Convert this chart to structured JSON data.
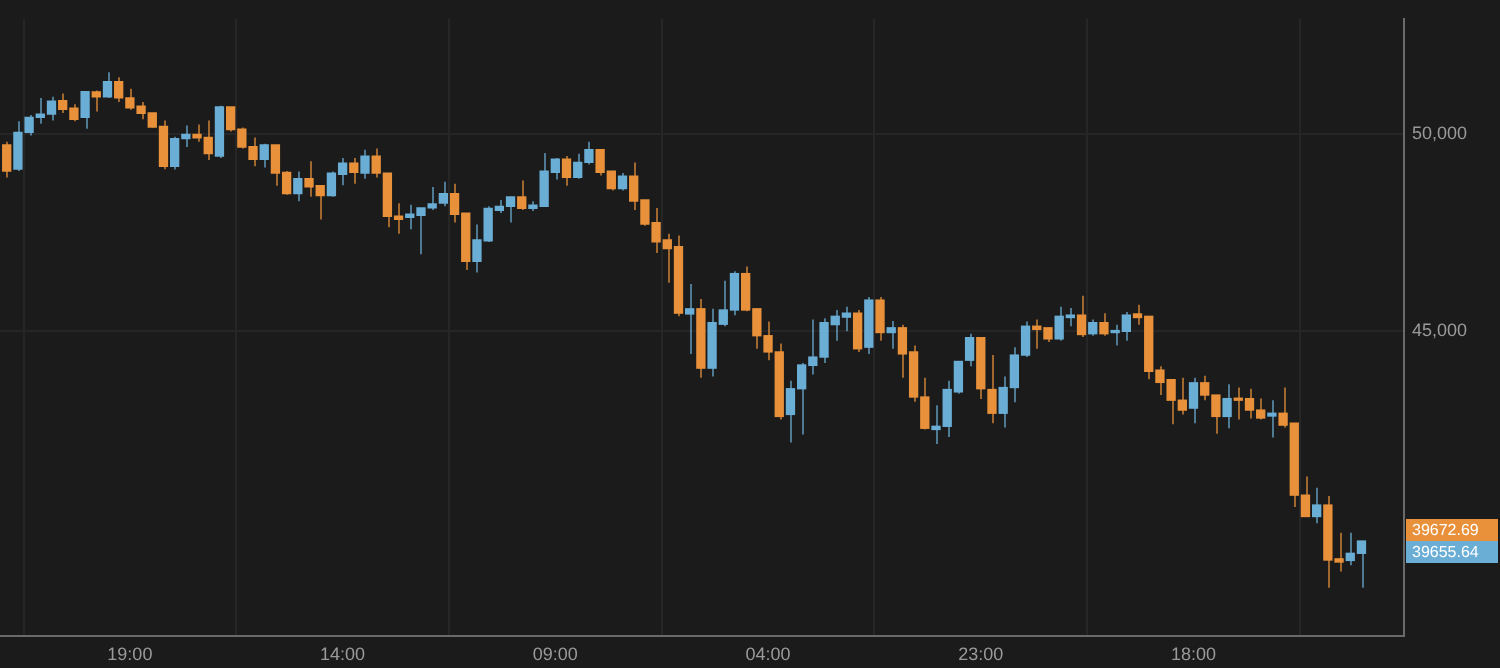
{
  "chart_data": {
    "type": "candlestick",
    "categories": [
      null,
      null,
      null,
      null,
      null,
      null,
      null,
      null,
      null,
      null,
      null,
      "19:00",
      null,
      null,
      null,
      null,
      null,
      null,
      null,
      null,
      null,
      null,
      null,
      null,
      null,
      null,
      null,
      null,
      null,
      null,
      "14:00",
      null,
      null,
      null,
      null,
      null,
      null,
      null,
      null,
      null,
      null,
      null,
      null,
      null,
      null,
      null,
      null,
      null,
      null,
      "09:00",
      null,
      null,
      null,
      null,
      null,
      null,
      null,
      null,
      null,
      null,
      null,
      null,
      null,
      null,
      null,
      null,
      null,
      null,
      "04:00",
      null,
      null,
      null,
      null,
      null,
      null,
      null,
      null,
      null,
      null,
      null,
      null,
      null,
      null,
      null,
      null,
      null,
      null,
      "23:00",
      null,
      null,
      null,
      null,
      null,
      null,
      null,
      null,
      null,
      null,
      null,
      null,
      null,
      null,
      null,
      null,
      null,
      null,
      "18:00",
      null,
      null,
      null,
      null,
      null,
      null,
      null,
      null,
      null,
      null,
      null,
      null,
      null,
      null,
      null
    ],
    "ohlc": [
      [
        49710,
        49790,
        48890,
        49050
      ],
      [
        49100,
        50310,
        49050,
        50030
      ],
      [
        50030,
        50470,
        49950,
        50410
      ],
      [
        50410,
        50900,
        50250,
        50490
      ],
      [
        50490,
        50930,
        50330,
        50820
      ],
      [
        50830,
        51010,
        50520,
        50610
      ],
      [
        50640,
        50740,
        50310,
        50360
      ],
      [
        50410,
        51060,
        50120,
        51060
      ],
      [
        51050,
        51090,
        50560,
        50930
      ],
      [
        50930,
        51550,
        50900,
        51310
      ],
      [
        51310,
        51420,
        50800,
        50900
      ],
      [
        50900,
        51130,
        50600,
        50650
      ],
      [
        50690,
        50800,
        50360,
        50510
      ],
      [
        50520,
        50520,
        50150,
        50160
      ],
      [
        50180,
        50330,
        49100,
        49170
      ],
      [
        49170,
        49920,
        49090,
        49870
      ],
      [
        49870,
        50200,
        49660,
        49980
      ],
      [
        49980,
        50230,
        49790,
        49890
      ],
      [
        49900,
        50330,
        49330,
        49490
      ],
      [
        49430,
        50700,
        49380,
        50670
      ],
      [
        50670,
        50670,
        50050,
        50100
      ],
      [
        50110,
        50150,
        49620,
        49660
      ],
      [
        49670,
        49900,
        49170,
        49350
      ],
      [
        49350,
        49740,
        49140,
        49710
      ],
      [
        49710,
        49710,
        48680,
        49000
      ],
      [
        49020,
        49050,
        48450,
        48480
      ],
      [
        48480,
        49040,
        48290,
        48860
      ],
      [
        48860,
        49300,
        48400,
        48650
      ],
      [
        48680,
        48680,
        47830,
        48430
      ],
      [
        48430,
        49040,
        48400,
        49000
      ],
      [
        48970,
        49380,
        48690,
        49250
      ],
      [
        49250,
        49380,
        48730,
        49020
      ],
      [
        49000,
        49590,
        48860,
        49430
      ],
      [
        49430,
        49620,
        48890,
        49000
      ],
      [
        49000,
        49000,
        47630,
        47910
      ],
      [
        47910,
        48240,
        47470,
        47830
      ],
      [
        47880,
        48200,
        47580,
        47960
      ],
      [
        47930,
        48120,
        46950,
        48120
      ],
      [
        48120,
        48650,
        48070,
        48220
      ],
      [
        48240,
        48780,
        48160,
        48480
      ],
      [
        48480,
        48730,
        47750,
        47960
      ],
      [
        47990,
        47990,
        46550,
        46770
      ],
      [
        46770,
        47700,
        46490,
        47310
      ],
      [
        47290,
        48160,
        47260,
        48110
      ],
      [
        48060,
        48320,
        47990,
        48160
      ],
      [
        48160,
        48400,
        47750,
        48400
      ],
      [
        48400,
        48810,
        48070,
        48110
      ],
      [
        48110,
        48290,
        48040,
        48190
      ],
      [
        48160,
        49510,
        48160,
        49050
      ],
      [
        49020,
        49380,
        48840,
        49350
      ],
      [
        49350,
        49430,
        48680,
        48890
      ],
      [
        48890,
        49490,
        48860,
        49270
      ],
      [
        49270,
        49790,
        49220,
        49590
      ],
      [
        49590,
        49590,
        48940,
        49020
      ],
      [
        49050,
        49050,
        48560,
        48610
      ],
      [
        48610,
        49000,
        48560,
        48920
      ],
      [
        48920,
        49270,
        48070,
        48290
      ],
      [
        48320,
        48320,
        47670,
        47710
      ],
      [
        47750,
        48120,
        46980,
        47260
      ],
      [
        47310,
        47470,
        46230,
        47090
      ],
      [
        47140,
        47420,
        45380,
        45460
      ],
      [
        45440,
        46200,
        44430,
        45570
      ],
      [
        45570,
        45820,
        43830,
        44070
      ],
      [
        44070,
        45570,
        43860,
        45220
      ],
      [
        45180,
        46280,
        45130,
        45540
      ],
      [
        45540,
        46520,
        45410,
        46460
      ],
      [
        46460,
        46640,
        45510,
        45540
      ],
      [
        45570,
        45570,
        44560,
        44890
      ],
      [
        44890,
        45250,
        44270,
        44480
      ],
      [
        44480,
        44690,
        42770,
        42850
      ],
      [
        42900,
        43750,
        42190,
        43550
      ],
      [
        43550,
        44200,
        42390,
        44150
      ],
      [
        44140,
        45300,
        43910,
        44350
      ],
      [
        44350,
        45330,
        44200,
        45220
      ],
      [
        45170,
        45540,
        44760,
        45380
      ],
      [
        45360,
        45620,
        45000,
        45460
      ],
      [
        45460,
        45540,
        44480,
        44560
      ],
      [
        44600,
        45870,
        44430,
        45790
      ],
      [
        45790,
        45870,
        44760,
        44970
      ],
      [
        44970,
        45260,
        44560,
        45090
      ],
      [
        45090,
        45170,
        43830,
        44430
      ],
      [
        44480,
        44640,
        43220,
        43340
      ],
      [
        43340,
        43830,
        42520,
        42550
      ],
      [
        42520,
        43130,
        42150,
        42600
      ],
      [
        42600,
        43750,
        42330,
        43530
      ],
      [
        43470,
        44240,
        43420,
        44240
      ],
      [
        44270,
        44940,
        44120,
        44840
      ],
      [
        44840,
        44840,
        43290,
        43550
      ],
      [
        43530,
        44400,
        42680,
        42930
      ],
      [
        42930,
        43860,
        42570,
        43580
      ],
      [
        43580,
        44600,
        43210,
        44400
      ],
      [
        44400,
        45250,
        44350,
        45130
      ],
      [
        45130,
        45300,
        44560,
        45050
      ],
      [
        45090,
        45090,
        44730,
        44810
      ],
      [
        44810,
        45620,
        44760,
        45380
      ],
      [
        45350,
        45590,
        45130,
        45410
      ],
      [
        45410,
        45900,
        44860,
        44920
      ],
      [
        44940,
        45300,
        44890,
        45220
      ],
      [
        45220,
        45460,
        44890,
        44940
      ],
      [
        44970,
        45170,
        44640,
        45020
      ],
      [
        45000,
        45490,
        44760,
        45410
      ],
      [
        45440,
        45670,
        45170,
        45350
      ],
      [
        45380,
        45380,
        43790,
        43990
      ],
      [
        44020,
        44120,
        43390,
        43710
      ],
      [
        43780,
        43780,
        42650,
        43260
      ],
      [
        43260,
        43830,
        42900,
        43010
      ],
      [
        43060,
        43830,
        42680,
        43700
      ],
      [
        43700,
        43880,
        43260,
        43390
      ],
      [
        43390,
        43390,
        42410,
        42850
      ],
      [
        42850,
        43660,
        42550,
        43300
      ],
      [
        43300,
        43580,
        42770,
        43260
      ],
      [
        43300,
        43550,
        42800,
        43010
      ],
      [
        43010,
        43300,
        42770,
        42810
      ],
      [
        42860,
        43260,
        42320,
        42930
      ],
      [
        42930,
        43580,
        42570,
        42630
      ],
      [
        42680,
        42680,
        40560,
        40860
      ],
      [
        40860,
        41330,
        40320,
        40320
      ],
      [
        40320,
        41050,
        40150,
        40610
      ],
      [
        40610,
        40840,
        38520,
        39220
      ],
      [
        39250,
        39910,
        38930,
        39170
      ],
      [
        39210,
        39910,
        39090,
        39390
      ],
      [
        39390,
        39700,
        38520,
        39700
      ]
    ],
    "colors": [
      "#e8913a",
      "#6aaed6",
      "#6aaed6",
      "#6aaed6",
      "#6aaed6",
      "#e8913a",
      "#e8913a",
      "#6aaed6",
      "#e8913a",
      "#6aaed6",
      "#e8913a",
      "#e8913a",
      "#e8913a",
      "#e8913a",
      "#e8913a",
      "#6aaed6",
      "#6aaed6",
      "#e8913a",
      "#e8913a",
      "#6aaed6",
      "#e8913a",
      "#e8913a",
      "#e8913a",
      "#6aaed6",
      "#e8913a",
      "#e8913a",
      "#6aaed6",
      "#e8913a",
      "#e8913a",
      "#6aaed6",
      "#6aaed6",
      "#e8913a",
      "#6aaed6",
      "#e8913a",
      "#e8913a",
      "#e8913a",
      "#6aaed6",
      "#6aaed6",
      "#6aaed6",
      "#6aaed6",
      "#e8913a",
      "#e8913a",
      "#6aaed6",
      "#6aaed6",
      "#6aaed6",
      "#6aaed6",
      "#e8913a",
      "#6aaed6",
      "#6aaed6",
      "#6aaed6",
      "#e8913a",
      "#6aaed6",
      "#6aaed6",
      "#e8913a",
      "#e8913a",
      "#6aaed6",
      "#e8913a",
      "#e8913a",
      "#e8913a",
      "#e8913a",
      "#e8913a",
      "#6aaed6",
      "#e8913a",
      "#6aaed6",
      "#6aaed6",
      "#6aaed6",
      "#e8913a",
      "#e8913a",
      "#e8913a",
      "#e8913a",
      "#6aaed6",
      "#6aaed6",
      "#6aaed6",
      "#6aaed6",
      "#6aaed6",
      "#6aaed6",
      "#e8913a",
      "#6aaed6",
      "#e8913a",
      "#6aaed6",
      "#e8913a",
      "#e8913a",
      "#e8913a",
      "#6aaed6",
      "#6aaed6",
      "#6aaed6",
      "#6aaed6",
      "#e8913a",
      "#e8913a",
      "#6aaed6",
      "#6aaed6",
      "#6aaed6",
      "#e8913a",
      "#e8913a",
      "#6aaed6",
      "#6aaed6",
      "#e8913a",
      "#6aaed6",
      "#e8913a",
      "#6aaed6",
      "#6aaed6",
      "#e8913a",
      "#e8913a",
      "#e8913a",
      "#e8913a",
      "#e8913a",
      "#6aaed6",
      "#e8913a",
      "#e8913a",
      "#6aaed6",
      "#e8913a",
      "#e8913a",
      "#e8913a",
      "#6aaed6",
      "#e8913a",
      "#e8913a",
      "#e8913a",
      "#6aaed6",
      "#e8913a",
      "#e8913a",
      "#6aaed6",
      "#6aaed6"
    ],
    "ylim": [
      37300,
      52900
    ],
    "yticks": [
      {
        "value": 45000,
        "label": "45,000"
      },
      {
        "value": 50000,
        "label": "50,000"
      }
    ],
    "grid": true,
    "annotations": [
      "39672.69",
      "39655.64"
    ]
  }
}
